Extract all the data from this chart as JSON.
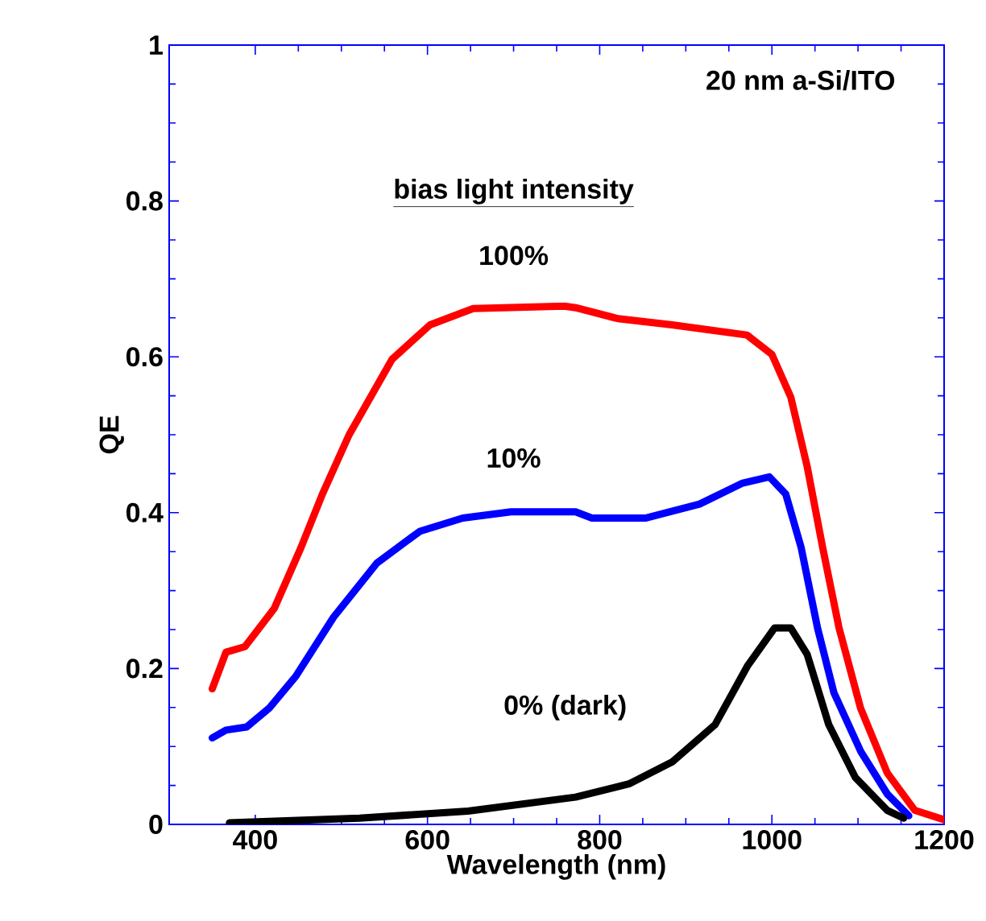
{
  "chart_data": {
    "type": "line",
    "xlabel": "Wavelength (nm)",
    "ylabel": "QE",
    "xlim": [
      300,
      1200
    ],
    "ylim": [
      0,
      1
    ],
    "xticks": [
      400,
      600,
      800,
      1000,
      1200
    ],
    "yticks": [
      0,
      0.2,
      0.4,
      0.6,
      0.8,
      1
    ],
    "annotations": [
      "20 nm a-Si/ITO",
      "bias light intensity"
    ],
    "series": [
      {
        "name": "100%",
        "color": "#ff0000",
        "x": [
          350,
          366,
          388,
          422,
          453,
          478,
          509,
          559,
          603,
          653,
          759,
          772,
          821,
          884,
          971,
          1000,
          1022,
          1041,
          1059,
          1078,
          1103,
          1134,
          1166,
          1200
        ],
        "values": [
          0.174,
          0.221,
          0.228,
          0.277,
          0.355,
          0.424,
          0.5,
          0.597,
          0.641,
          0.662,
          0.665,
          0.663,
          0.649,
          0.641,
          0.628,
          0.603,
          0.548,
          0.459,
          0.355,
          0.252,
          0.149,
          0.066,
          0.018,
          0.006
        ]
      },
      {
        "name": "10%",
        "color": "#0000ff",
        "x": [
          350,
          366,
          390,
          416,
          447,
          491,
          541,
          591,
          641,
          697,
          772,
          791,
          853,
          916,
          966,
          997,
          1016,
          1034,
          1053,
          1072,
          1103,
          1134,
          1159
        ],
        "values": [
          0.111,
          0.121,
          0.125,
          0.149,
          0.19,
          0.266,
          0.335,
          0.376,
          0.393,
          0.401,
          0.401,
          0.393,
          0.393,
          0.411,
          0.438,
          0.446,
          0.424,
          0.355,
          0.252,
          0.169,
          0.094,
          0.039,
          0.011
        ]
      },
      {
        "name": "0% (dark)",
        "color": "#000000",
        "x": [
          370,
          521,
          647,
          772,
          834,
          884,
          934,
          972,
          1003,
          1022,
          1041,
          1066,
          1097,
          1134,
          1153
        ],
        "values": [
          0.002,
          0.008,
          0.017,
          0.035,
          0.052,
          0.08,
          0.128,
          0.204,
          0.252,
          0.252,
          0.218,
          0.128,
          0.06,
          0.018,
          0.008
        ]
      }
    ]
  }
}
